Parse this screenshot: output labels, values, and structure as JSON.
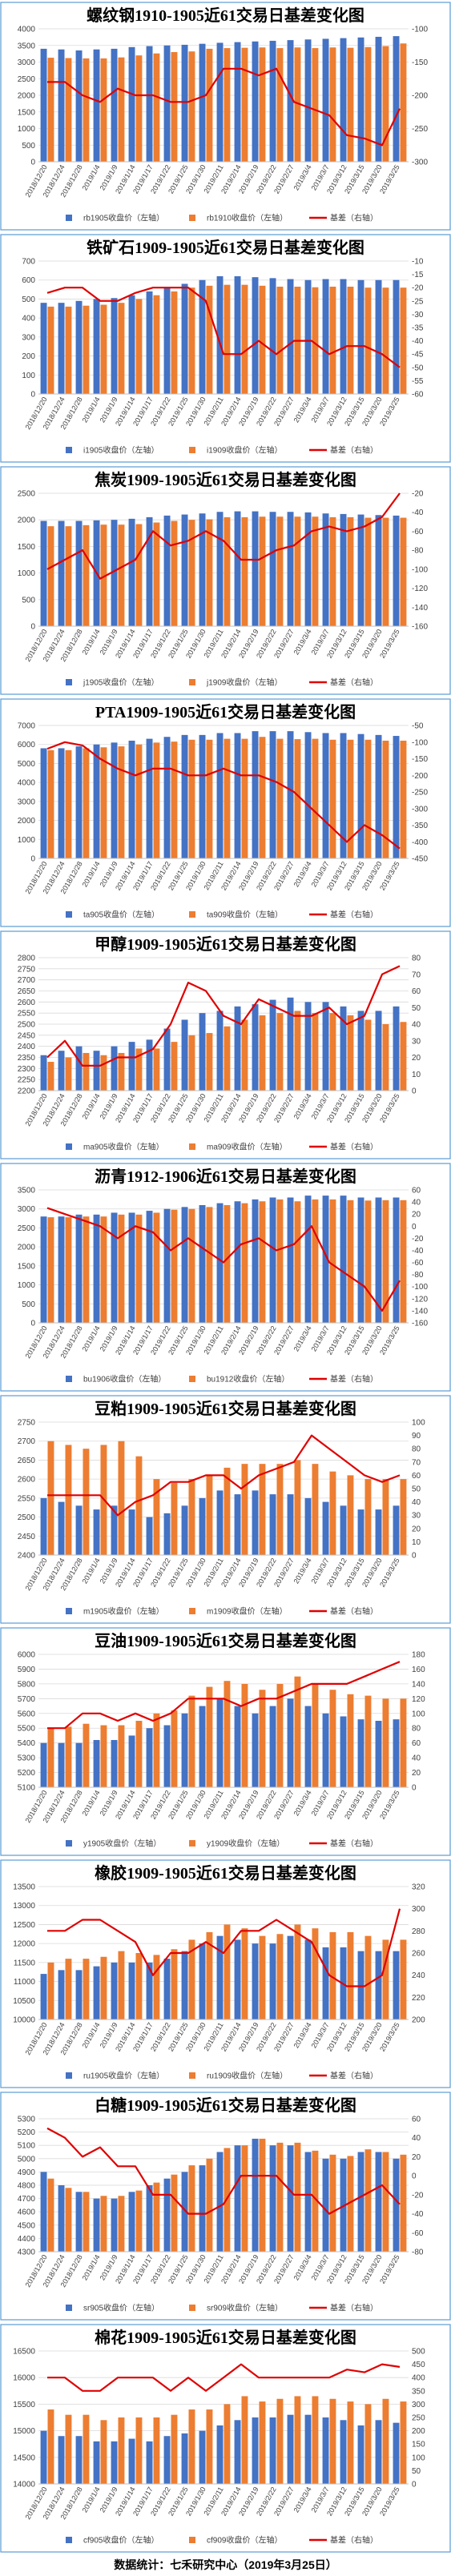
{
  "footer": "数据统计：七禾研究中心（2019年3月25日）",
  "colors": {
    "near": "#4472C4",
    "far": "#ED7D31",
    "basis": "#E00000",
    "frame": "#5b9bd5",
    "grid": "#d9d9d9"
  },
  "x_labels": [
    "2018/12/20",
    "2018/12/24",
    "2018/12/28",
    "2019/1/4",
    "2019/1/9",
    "2019/1/14",
    "2019/1/17",
    "2019/1/22",
    "2019/1/25",
    "2019/1/30",
    "2019/2/11",
    "2019/2/14",
    "2019/2/19",
    "2019/2/22",
    "2019/2/27",
    "2019/3/4",
    "2019/3/7",
    "2019/3/12",
    "2019/3/15",
    "2019/3/20",
    "2019/3/25"
  ],
  "chart_data": [
    {
      "type": "bar",
      "title": "螺纹钢1910-1905近61交易日基差变化图",
      "series": [
        {
          "name": "rb1905收盘价（左轴）",
          "key": "near"
        },
        {
          "name": "rb1910收盘价（左轴）",
          "key": "far"
        },
        {
          "name": "基差（右轴）",
          "key": "basis"
        }
      ],
      "left_axis": {
        "min": 0,
        "max": 4000,
        "step": 500
      },
      "right_axis": {
        "min": -300,
        "max": -100,
        "step": 50
      },
      "near": [
        3400,
        3380,
        3350,
        3380,
        3400,
        3450,
        3480,
        3500,
        3520,
        3550,
        3580,
        3600,
        3620,
        3640,
        3660,
        3680,
        3700,
        3720,
        3740,
        3760,
        3780
      ],
      "far": [
        3130,
        3120,
        3110,
        3110,
        3140,
        3200,
        3260,
        3300,
        3320,
        3400,
        3420,
        3430,
        3440,
        3420,
        3440,
        3420,
        3440,
        3430,
        3450,
        3480,
        3560
      ],
      "basis": [
        -180,
        -180,
        -200,
        -210,
        -190,
        -200,
        -200,
        -210,
        -210,
        -200,
        -160,
        -160,
        -170,
        -160,
        -210,
        -220,
        -230,
        -260,
        -265,
        -275,
        -220
      ]
    },
    {
      "type": "bar",
      "title": "铁矿石1909-1905近61交易日基差变化图",
      "series": [
        {
          "name": "i1905收盘价（左轴）",
          "key": "near"
        },
        {
          "name": "i1909收盘价（左轴）",
          "key": "far"
        },
        {
          "name": "基差（右轴）",
          "key": "basis"
        }
      ],
      "left_axis": {
        "min": 0,
        "max": 700,
        "step": 100
      },
      "right_axis": {
        "min": -60,
        "max": -10,
        "step": 5
      },
      "near": [
        480,
        480,
        490,
        500,
        505,
        520,
        540,
        560,
        580,
        600,
        620,
        620,
        615,
        610,
        605,
        600,
        605,
        605,
        600,
        600,
        600
      ],
      "far": [
        460,
        460,
        465,
        470,
        480,
        500,
        520,
        540,
        560,
        570,
        575,
        575,
        570,
        565,
        565,
        562,
        565,
        565,
        560,
        560,
        560
      ],
      "basis": [
        -22,
        -20,
        -20,
        -25,
        -25,
        -22,
        -20,
        -20,
        -20,
        -25,
        -45,
        -45,
        -40,
        -45,
        -40,
        -40,
        -45,
        -42,
        -42,
        -45,
        -50
      ]
    },
    {
      "type": "bar",
      "title": "焦炭1909-1905近61交易日基差变化图",
      "series": [
        {
          "name": "j1905收盘价（左轴）",
          "key": "near"
        },
        {
          "name": "j1909收盘价（左轴）",
          "key": "far"
        },
        {
          "name": "基差（右轴）",
          "key": "basis"
        }
      ],
      "left_axis": {
        "min": 0,
        "max": 2500,
        "step": 500
      },
      "right_axis": {
        "min": -160,
        "max": -20,
        "step": 20
      },
      "near": [
        1980,
        1980,
        1980,
        1990,
        2000,
        2020,
        2050,
        2080,
        2100,
        2120,
        2150,
        2160,
        2160,
        2150,
        2150,
        2140,
        2120,
        2110,
        2100,
        2090,
        2080
      ],
      "far": [
        1880,
        1880,
        1900,
        1910,
        1910,
        1920,
        1950,
        1980,
        2000,
        2010,
        2050,
        2050,
        2060,
        2060,
        2060,
        2060,
        2050,
        2050,
        2040,
        2040,
        2040
      ],
      "basis": [
        -100,
        -90,
        -80,
        -110,
        -100,
        -90,
        -60,
        -75,
        -70,
        -60,
        -70,
        -90,
        -90,
        -80,
        -75,
        -60,
        -55,
        -60,
        -55,
        -45,
        -20
      ]
    },
    {
      "type": "bar",
      "title": "PTA1909-1905近61交易日基差变化图",
      "series": [
        {
          "name": "ta905收盘价（左轴）",
          "key": "near"
        },
        {
          "name": "ta909收盘价（左轴）",
          "key": "far"
        },
        {
          "name": "基差（右轴）",
          "key": "basis"
        }
      ],
      "left_axis": {
        "min": 0,
        "max": 7000,
        "step": 1000
      },
      "right_axis": {
        "min": -450,
        "max": -50,
        "step": 50
      },
      "near": [
        5800,
        5800,
        5900,
        6000,
        6100,
        6200,
        6300,
        6400,
        6500,
        6500,
        6600,
        6600,
        6700,
        6700,
        6700,
        6650,
        6600,
        6600,
        6550,
        6500,
        6450
      ],
      "far": [
        5700,
        5700,
        5800,
        5850,
        5900,
        6000,
        6100,
        6150,
        6250,
        6250,
        6300,
        6300,
        6400,
        6300,
        6280,
        6300,
        6250,
        6250,
        6250,
        6200,
        6200
      ],
      "basis": [
        -120,
        -100,
        -110,
        -150,
        -180,
        -200,
        -180,
        -180,
        -200,
        -200,
        -180,
        -200,
        -200,
        -220,
        -250,
        -300,
        -350,
        -400,
        -350,
        -380,
        -420
      ]
    },
    {
      "type": "bar",
      "title": "甲醇1909-1905近61交易日基差变化图",
      "series": [
        {
          "name": "ma905收盘价（左轴）",
          "key": "near"
        },
        {
          "name": "ma909收盘价（左轴）",
          "key": "far"
        },
        {
          "name": "基差（右轴）",
          "key": "basis"
        }
      ],
      "left_axis": {
        "min": 2200,
        "max": 2800,
        "step": 50
      },
      "right_axis": {
        "min": 0,
        "max": 80,
        "step": 10
      },
      "near": [
        2360,
        2380,
        2400,
        2380,
        2400,
        2420,
        2430,
        2480,
        2520,
        2550,
        2560,
        2580,
        2590,
        2610,
        2620,
        2600,
        2600,
        2580,
        2560,
        2560,
        2580
      ],
      "far": [
        2330,
        2350,
        2370,
        2360,
        2370,
        2390,
        2390,
        2420,
        2450,
        2460,
        2490,
        2520,
        2540,
        2550,
        2560,
        2550,
        2550,
        2540,
        2520,
        2500,
        2510
      ],
      "basis": [
        20,
        30,
        15,
        15,
        20,
        20,
        25,
        40,
        65,
        60,
        45,
        40,
        55,
        50,
        45,
        45,
        50,
        40,
        45,
        70,
        75
      ]
    },
    {
      "type": "bar",
      "title": "沥青1912-1906近61交易日基差变化图",
      "series": [
        {
          "name": "bu1906收盘价（左轴）",
          "key": "near"
        },
        {
          "name": "bu1912收盘价（左轴）",
          "key": "far"
        },
        {
          "name": "基差（右轴）",
          "key": "basis"
        }
      ],
      "left_axis": {
        "min": 0,
        "max": 3500,
        "step": 500
      },
      "right_axis": {
        "min": -160,
        "max": 60,
        "step": 20
      },
      "near": [
        2800,
        2800,
        2850,
        2850,
        2900,
        2900,
        2950,
        3000,
        3050,
        3100,
        3150,
        3200,
        3250,
        3300,
        3300,
        3350,
        3350,
        3350,
        3300,
        3300,
        3300
      ],
      "far": [
        2780,
        2780,
        2800,
        2800,
        2850,
        2850,
        2900,
        2980,
        3000,
        3050,
        3100,
        3150,
        3200,
        3250,
        3200,
        3250,
        3250,
        3230,
        3220,
        3230,
        3230
      ],
      "basis": [
        30,
        20,
        10,
        0,
        -20,
        0,
        -10,
        -40,
        -20,
        -40,
        -60,
        -30,
        -20,
        -40,
        -30,
        0,
        -60,
        -80,
        -100,
        -140,
        -90
      ]
    },
    {
      "type": "bar",
      "title": "豆粕1909-1905近61交易日基差变化图",
      "series": [
        {
          "name": "m1905收盘价（左轴）",
          "key": "near"
        },
        {
          "name": "m1909收盘价（左轴）",
          "key": "far"
        },
        {
          "name": "基差（右轴）",
          "key": "basis"
        }
      ],
      "left_axis": {
        "min": 2400,
        "max": 2750,
        "step": 50
      },
      "right_axis": {
        "min": 0,
        "max": 100,
        "step": 10
      },
      "near": [
        2550,
        2540,
        2530,
        2520,
        2530,
        2520,
        2500,
        2510,
        2530,
        2550,
        2570,
        2560,
        2570,
        2560,
        2560,
        2550,
        2540,
        2530,
        2520,
        2520,
        2530
      ],
      "far": [
        2700,
        2690,
        2680,
        2690,
        2700,
        2660,
        2600,
        2590,
        2600,
        2610,
        2630,
        2640,
        2640,
        2640,
        2650,
        2640,
        2620,
        2610,
        2600,
        2600,
        2600
      ],
      "basis": [
        45,
        45,
        45,
        45,
        30,
        40,
        45,
        55,
        55,
        60,
        60,
        50,
        60,
        65,
        70,
        90,
        80,
        70,
        60,
        55,
        60
      ]
    },
    {
      "type": "bar",
      "title": "豆油1909-1905近61交易日基差变化图",
      "series": [
        {
          "name": "y1905收盘价（左轴）",
          "key": "near"
        },
        {
          "name": "y1909收盘价（左轴）",
          "key": "far"
        },
        {
          "name": "基差（右轴）",
          "key": "basis"
        }
      ],
      "left_axis": {
        "min": 5100,
        "max": 6000,
        "step": 100
      },
      "right_axis": {
        "min": 0,
        "max": 180,
        "step": 20
      },
      "near": [
        5400,
        5400,
        5400,
        5420,
        5420,
        5450,
        5500,
        5520,
        5600,
        5650,
        5700,
        5650,
        5600,
        5650,
        5700,
        5650,
        5600,
        5580,
        5560,
        5550,
        5560
      ],
      "far": [
        5500,
        5510,
        5530,
        5520,
        5520,
        5550,
        5600,
        5620,
        5720,
        5780,
        5820,
        5800,
        5760,
        5800,
        5850,
        5800,
        5760,
        5730,
        5720,
        5700,
        5700
      ],
      "basis": [
        80,
        80,
        100,
        100,
        90,
        100,
        90,
        100,
        120,
        120,
        120,
        110,
        120,
        120,
        130,
        140,
        140,
        140,
        150,
        160,
        170
      ]
    },
    {
      "type": "bar",
      "title": "橡胶1909-1905近61交易日基差变化图",
      "series": [
        {
          "name": "ru1905收盘价（左轴）",
          "key": "near"
        },
        {
          "name": "ru1909收盘价（左轴）",
          "key": "far"
        },
        {
          "name": "基差（右轴）",
          "key": "basis"
        }
      ],
      "left_axis": {
        "min": 10000,
        "max": 13500,
        "step": 500
      },
      "right_axis": {
        "min": 200,
        "max": 320,
        "step": 20
      },
      "near": [
        11200,
        11300,
        11300,
        11400,
        11500,
        11500,
        11500,
        11600,
        11800,
        12000,
        12200,
        12100,
        12000,
        12000,
        12200,
        12100,
        11900,
        11900,
        11800,
        11800,
        11800
      ],
      "far": [
        11500,
        11600,
        11600,
        11650,
        11800,
        11750,
        11700,
        11850,
        12100,
        12300,
        12500,
        12400,
        12200,
        12250,
        12500,
        12400,
        12300,
        12300,
        12200,
        12100,
        12100
      ],
      "basis": [
        280,
        280,
        290,
        290,
        280,
        270,
        240,
        260,
        260,
        270,
        260,
        280,
        280,
        290,
        280,
        270,
        240,
        230,
        230,
        240,
        300
      ]
    },
    {
      "type": "bar",
      "title": "白糖1909-1905近61交易日基差变化图",
      "series": [
        {
          "name": "sr905收盘价（左轴）",
          "key": "near"
        },
        {
          "name": "sr909收盘价（左轴）",
          "key": "far"
        },
        {
          "name": "基差（右轴）",
          "key": "basis"
        }
      ],
      "left_axis": {
        "min": 4300,
        "max": 5300,
        "step": 100
      },
      "right_axis": {
        "min": -80,
        "max": 60,
        "step": 20
      },
      "near": [
        4900,
        4800,
        4750,
        4700,
        4700,
        4750,
        4800,
        4850,
        4900,
        4950,
        5050,
        5100,
        5150,
        5100,
        5100,
        5050,
        5000,
        5000,
        5050,
        5050,
        5000
      ],
      "far": [
        4850,
        4780,
        4750,
        4720,
        4720,
        4760,
        4820,
        4880,
        4950,
        5000,
        5080,
        5100,
        5150,
        5120,
        5120,
        5060,
        5030,
        5020,
        5070,
        5050,
        5030
      ],
      "basis": [
        50,
        40,
        20,
        30,
        10,
        10,
        -20,
        -20,
        -40,
        -40,
        -30,
        0,
        0,
        0,
        -20,
        -20,
        -40,
        -30,
        -20,
        -10,
        -30
      ]
    },
    {
      "type": "bar",
      "title": "棉花1909-1905近61交易日基差变化图",
      "series": [
        {
          "name": "cf905收盘价（左轴）",
          "key": "near"
        },
        {
          "name": "cf909收盘价（左轴）",
          "key": "far"
        },
        {
          "name": "基差（右轴）",
          "key": "basis"
        }
      ],
      "left_axis": {
        "min": 14000,
        "max": 16500,
        "step": 500
      },
      "right_axis": {
        "min": 0,
        "max": 500,
        "step": 50
      },
      "near": [
        15000,
        14900,
        14900,
        14800,
        14800,
        14850,
        14800,
        14900,
        14950,
        15000,
        15100,
        15200,
        15250,
        15250,
        15300,
        15300,
        15250,
        15200,
        15100,
        15200,
        15150
      ],
      "far": [
        15400,
        15300,
        15300,
        15200,
        15250,
        15250,
        15250,
        15300,
        15400,
        15400,
        15500,
        15650,
        15550,
        15600,
        15650,
        15650,
        15600,
        15550,
        15500,
        15600,
        15550
      ],
      "basis": [
        400,
        400,
        350,
        350,
        400,
        400,
        400,
        350,
        400,
        350,
        400,
        450,
        400,
        400,
        400,
        400,
        400,
        430,
        420,
        450,
        440
      ]
    }
  ]
}
